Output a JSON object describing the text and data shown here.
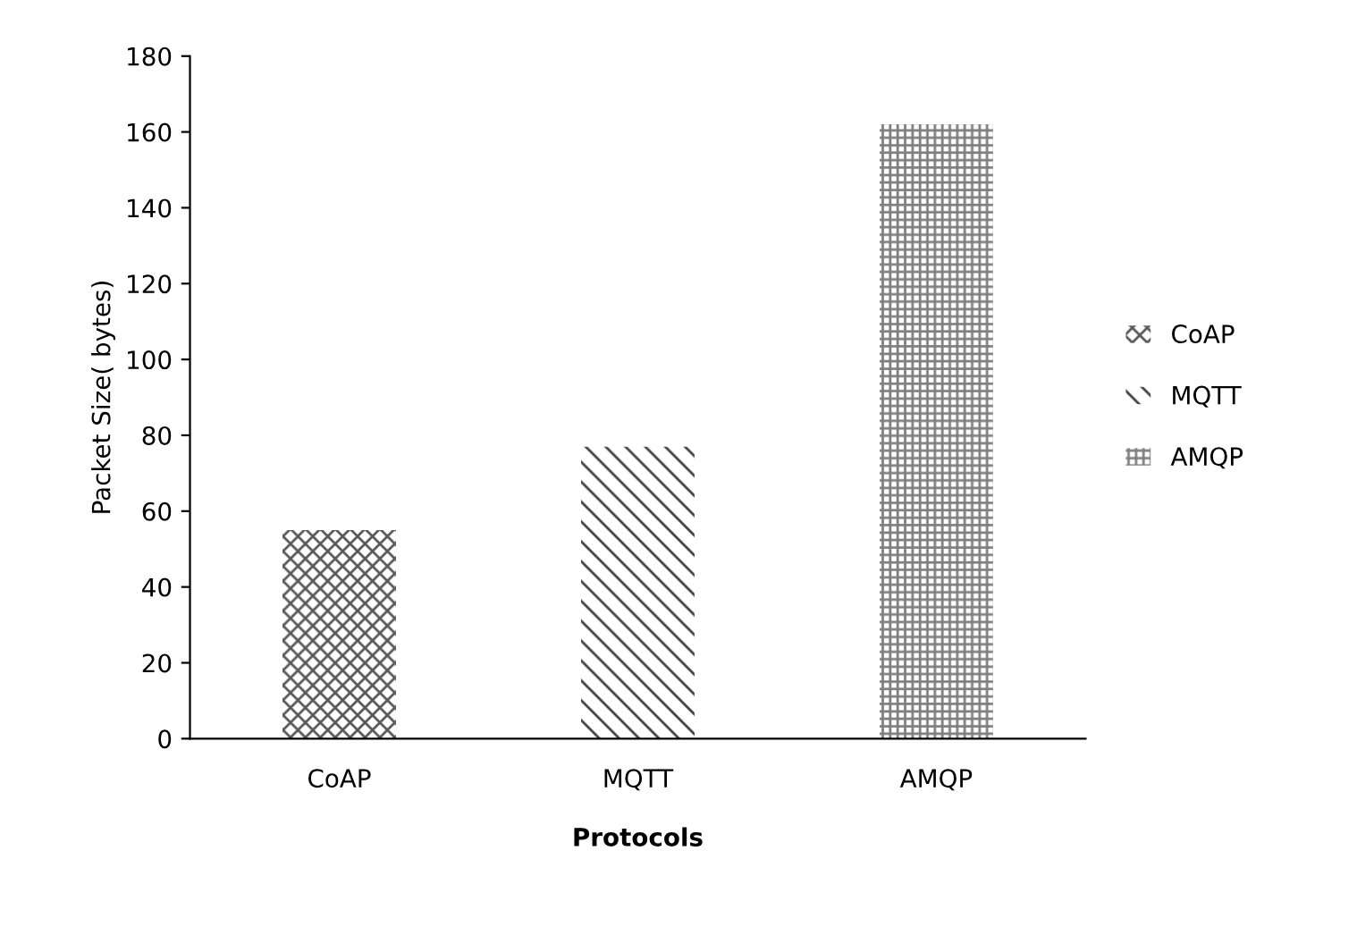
{
  "chart_data": {
    "type": "bar",
    "xlabel": "Protocols",
    "ylabel": "Packet Size( bytes)",
    "categories": [
      "CoAP",
      "MQTT",
      "AMQP"
    ],
    "series": [
      {
        "name": "CoAP",
        "color": "#595959",
        "values": [
          55,
          null,
          null
        ]
      },
      {
        "name": "MQTT",
        "color": "#404040",
        "values": [
          null,
          77,
          null
        ]
      },
      {
        "name": "AMQP",
        "color": "#7f7f7f",
        "values": [
          null,
          null,
          162
        ]
      }
    ],
    "ylim": [
      0,
      180
    ],
    "yticks": [
      0,
      20,
      40,
      60,
      80,
      100,
      120,
      140,
      160,
      180
    ],
    "grid": false,
    "legend": "right"
  }
}
